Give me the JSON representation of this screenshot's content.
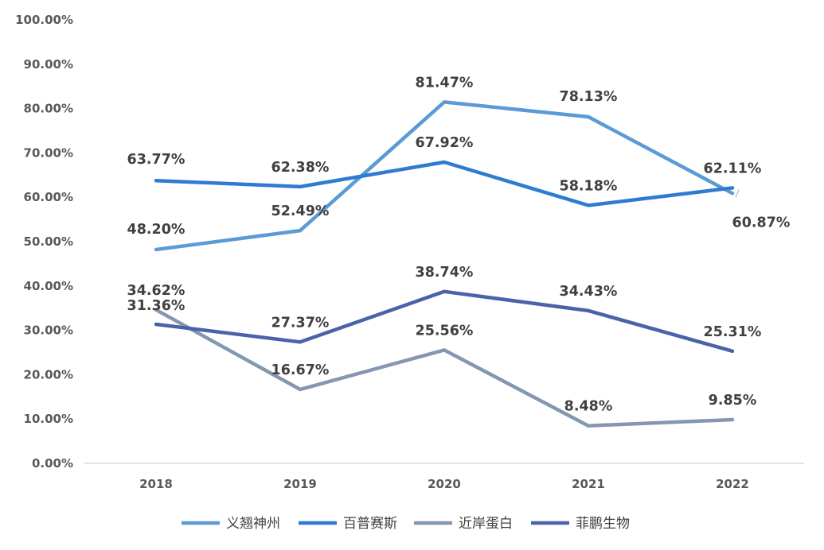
{
  "chart_data": {
    "type": "line",
    "title": "",
    "xlabel": "",
    "ylabel": "",
    "categories": [
      "2018",
      "2019",
      "2020",
      "2021",
      "2022"
    ],
    "ylim": [
      0,
      100
    ],
    "y_ticks": [
      "0.00%",
      "10.00%",
      "20.00%",
      "30.00%",
      "40.00%",
      "50.00%",
      "60.00%",
      "70.00%",
      "80.00%",
      "90.00%",
      "100.00%"
    ],
    "grid": false,
    "legend_position": "bottom",
    "series": [
      {
        "name": "义翘神州",
        "color": "#5B9BD5",
        "values": [
          48.2,
          52.49,
          81.47,
          78.13,
          60.87
        ],
        "labels": [
          "48.20%",
          "52.49%",
          "81.47%",
          "78.13%",
          "60.87%"
        ]
      },
      {
        "name": "百普赛斯",
        "color": "#2E7BD0",
        "values": [
          63.77,
          62.38,
          67.92,
          58.18,
          62.11
        ],
        "labels": [
          "63.77%",
          "62.38%",
          "67.92%",
          "58.18%",
          "62.11%"
        ]
      },
      {
        "name": "近岸蛋白",
        "color": "#8497B0",
        "values": [
          34.62,
          16.67,
          25.56,
          8.48,
          9.85
        ],
        "labels": [
          "34.62%",
          "16.67%",
          "25.56%",
          "8.48%",
          "9.85%"
        ]
      },
      {
        "name": "菲鹏生物",
        "color": "#4A62A8",
        "values": [
          31.36,
          27.37,
          38.74,
          34.43,
          25.31
        ],
        "labels": [
          "31.36%",
          "27.37%",
          "38.74%",
          "34.43%",
          "25.31%"
        ]
      }
    ]
  }
}
